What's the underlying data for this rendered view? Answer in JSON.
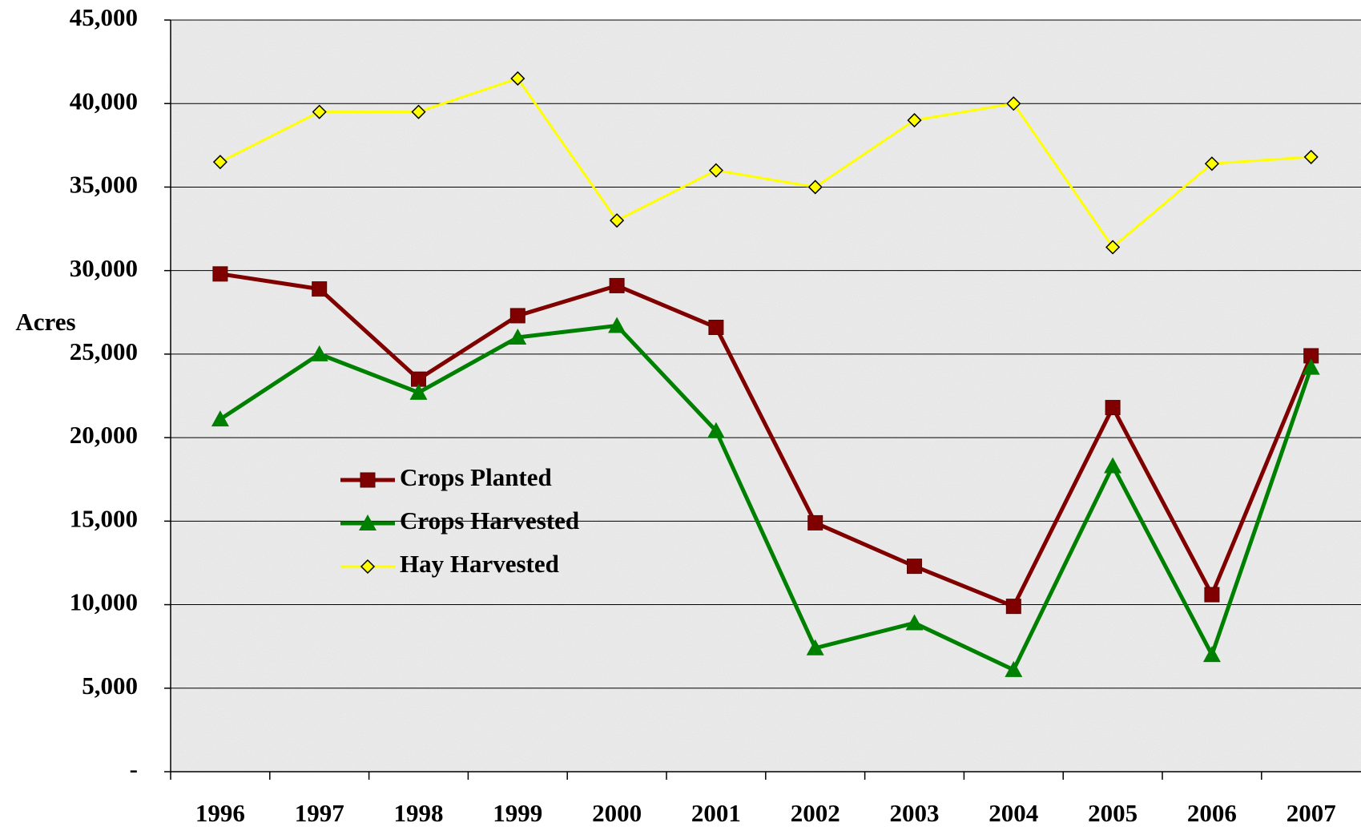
{
  "chart_data": {
    "type": "line",
    "y_label": "Acres",
    "categories": [
      "1996",
      "1997",
      "1998",
      "1999",
      "2000",
      "2001",
      "2002",
      "2003",
      "2004",
      "2005",
      "2006",
      "2007"
    ],
    "series": [
      {
        "name": "Crops Planted",
        "color": "#800000",
        "marker": "square",
        "values": [
          29800,
          28900,
          23500,
          27300,
          29100,
          26600,
          14900,
          12300,
          9900,
          21800,
          10600,
          24900
        ]
      },
      {
        "name": "Crops Harvested",
        "color": "#008000",
        "marker": "triangle",
        "values": [
          21100,
          25000,
          22700,
          26000,
          26700,
          20400,
          7400,
          8900,
          6100,
          18300,
          7000,
          24200
        ]
      },
      {
        "name": "Hay Harvested",
        "color": "#ffff00",
        "marker": "diamond",
        "values": [
          36500,
          39500,
          39500,
          41500,
          33000,
          36000,
          35000,
          39000,
          40000,
          31400,
          36400,
          36800
        ]
      }
    ],
    "ylim": [
      0,
      45000
    ],
    "yticks": [
      {
        "value": 0,
        "label": "-"
      },
      {
        "value": 5000,
        "label": "5,000"
      },
      {
        "value": 10000,
        "label": "10,000"
      },
      {
        "value": 15000,
        "label": "15,000"
      },
      {
        "value": 20000,
        "label": "20,000"
      },
      {
        "value": 25000,
        "label": "25,000"
      },
      {
        "value": 30000,
        "label": "30,000"
      },
      {
        "value": 35000,
        "label": "35,000"
      },
      {
        "value": 40000,
        "label": "40,000"
      },
      {
        "value": 45000,
        "label": "45,000"
      }
    ],
    "grid": true
  }
}
